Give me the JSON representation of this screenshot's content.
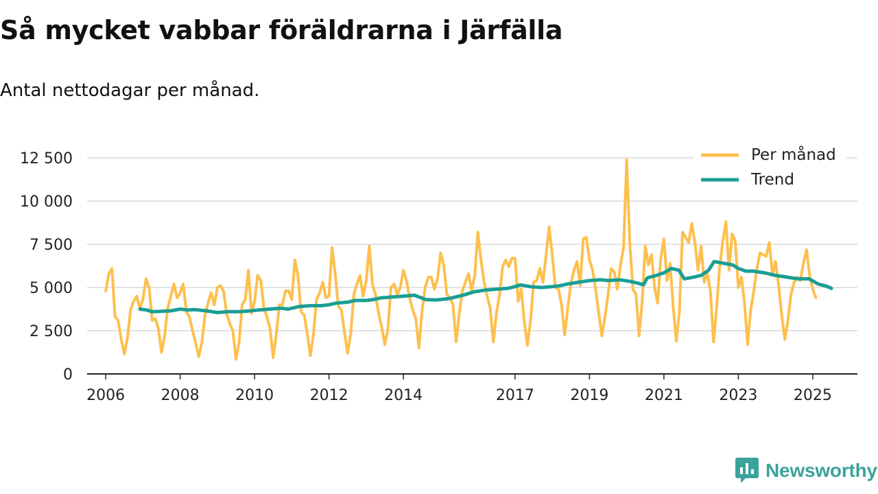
{
  "title": "Så mycket vabbar föräldrarna i Järfälla",
  "subtitle": "Antal nettodagar per månad.",
  "brand": "Newsworthy",
  "colors": {
    "monthly": "#fdc04e",
    "trend": "#1a9e94",
    "grid": "#d9d9d9",
    "axis": "#222222",
    "brand": "#3aa39a"
  },
  "chart_data": {
    "type": "line",
    "title": "Så mycket vabbar föräldrarna i Järfälla",
    "subtitle": "Antal nettodagar per månad.",
    "xlabel": "",
    "ylabel": "",
    "ylim": [
      0,
      12500
    ],
    "yticks": [
      0,
      2500,
      5000,
      7500,
      10000,
      12500
    ],
    "ytick_labels": [
      "0",
      "2 500",
      "5 000",
      "7 500",
      "10 000",
      "12 500"
    ],
    "xlim": [
      2005.5,
      2026.2
    ],
    "xticks": [
      2006,
      2008,
      2010,
      2012,
      2014,
      2017,
      2019,
      2021,
      2023,
      2025
    ],
    "xtick_labels": [
      "2006",
      "2008",
      "2010",
      "2012",
      "2014",
      "2017",
      "2019",
      "2021",
      "2023",
      "2025"
    ],
    "grid": true,
    "legend_position": "top-right",
    "series": [
      {
        "name": "Per månad",
        "color": "#fdc04e",
        "x_start": 2006.0,
        "x_step": 0.08333,
        "values": [
          4800,
          5800,
          6100,
          3300,
          3100,
          2000,
          1150,
          2100,
          3700,
          4200,
          4500,
          3800,
          4300,
          5500,
          5000,
          3100,
          3200,
          2600,
          1250,
          2200,
          3800,
          4500,
          5200,
          4400,
          4700,
          5200,
          3600,
          3300,
          2500,
          1800,
          1000,
          1800,
          3400,
          4100,
          4700,
          4000,
          5000,
          5100,
          4800,
          3500,
          2900,
          2500,
          850,
          1800,
          4000,
          4300,
          6000,
          3500,
          4200,
          5700,
          5400,
          3800,
          3300,
          2600,
          950,
          2300,
          4000,
          4000,
          4800,
          4800,
          4300,
          6600,
          5700,
          3600,
          3400,
          2300,
          1050,
          2300,
          4300,
          4700,
          5300,
          4400,
          4500,
          7300,
          5800,
          3900,
          3700,
          2400,
          1200,
          2300,
          4600,
          5200,
          5700,
          4500,
          5400,
          7400,
          5200,
          4600,
          3500,
          2700,
          1700,
          2600,
          5000,
          5200,
          4600,
          5000,
          6000,
          5400,
          4400,
          3700,
          3200,
          1500,
          3600,
          5000,
          5600,
          5600,
          4900,
          5500,
          7000,
          6300,
          4600,
          4400,
          4000,
          1850,
          3500,
          4800,
          5300,
          5800,
          4800,
          5700,
          8200,
          6600,
          5300,
          4500,
          3800,
          1850,
          3500,
          4600,
          6200,
          6600,
          6200,
          6700,
          6700,
          4200,
          4900,
          3000,
          1650,
          3100,
          5300,
          5400,
          6100,
          5300,
          6900,
          8500,
          6900,
          5000,
          4900,
          4000,
          2250,
          3800,
          5200,
          6000,
          6500,
          5100,
          7800,
          7900,
          6600,
          6000,
          4900,
          3500,
          2200,
          3300,
          4600,
          6100,
          5900,
          4900,
          6300,
          7300,
          12400,
          7600,
          4900,
          4600,
          2200,
          4200,
          7400,
          6300,
          6900,
          5000,
          4100,
          6700,
          7800,
          5400,
          6400,
          3900,
          1900,
          3600,
          8200,
          7900,
          7600,
          8700,
          7600,
          6000,
          7400,
          5300,
          5800,
          4800,
          1850,
          3800,
          6200,
          7700,
          8800,
          6000,
          8100,
          7700,
          5000,
          5600,
          4100,
          1700,
          3700,
          4800,
          6100,
          7000,
          6900,
          6800,
          7600,
          5700,
          6500,
          5100,
          3400,
          2000,
          3100,
          4600,
          5300,
          5600,
          5400,
          6400,
          7200,
          5700,
          4900,
          4400
        ]
      },
      {
        "name": "Trend",
        "color": "#1a9e94",
        "points": [
          [
            2006.92,
            3750
          ],
          [
            2007.1,
            3700
          ],
          [
            2007.25,
            3600
          ],
          [
            2007.5,
            3620
          ],
          [
            2007.75,
            3650
          ],
          [
            2008.0,
            3750
          ],
          [
            2008.2,
            3700
          ],
          [
            2008.4,
            3720
          ],
          [
            2008.7,
            3650
          ],
          [
            2009.0,
            3550
          ],
          [
            2009.3,
            3600
          ],
          [
            2009.6,
            3600
          ],
          [
            2009.9,
            3650
          ],
          [
            2010.1,
            3700
          ],
          [
            2010.4,
            3750
          ],
          [
            2010.7,
            3800
          ],
          [
            2010.9,
            3750
          ],
          [
            2011.2,
            3900
          ],
          [
            2011.5,
            3950
          ],
          [
            2011.8,
            3950
          ],
          [
            2012.0,
            4000
          ],
          [
            2012.2,
            4100
          ],
          [
            2012.5,
            4150
          ],
          [
            2012.7,
            4250
          ],
          [
            2013.0,
            4250
          ],
          [
            2013.2,
            4300
          ],
          [
            2013.4,
            4400
          ],
          [
            2013.7,
            4450
          ],
          [
            2014.0,
            4500
          ],
          [
            2014.3,
            4550
          ],
          [
            2014.6,
            4300
          ],
          [
            2014.9,
            4280
          ],
          [
            2015.2,
            4350
          ],
          [
            2015.6,
            4550
          ],
          [
            2015.9,
            4750
          ],
          [
            2016.2,
            4850
          ],
          [
            2016.5,
            4900
          ],
          [
            2016.8,
            4950
          ],
          [
            2017.0,
            5050
          ],
          [
            2017.15,
            5150
          ],
          [
            2017.4,
            5050
          ],
          [
            2017.7,
            5000
          ],
          [
            2018.0,
            5050
          ],
          [
            2018.2,
            5100
          ],
          [
            2018.4,
            5200
          ],
          [
            2018.7,
            5300
          ],
          [
            2019.0,
            5400
          ],
          [
            2019.3,
            5450
          ],
          [
            2019.5,
            5400
          ],
          [
            2019.8,
            5450
          ],
          [
            2020.1,
            5350
          ],
          [
            2020.3,
            5250
          ],
          [
            2020.45,
            5150
          ],
          [
            2020.55,
            5550
          ],
          [
            2020.8,
            5700
          ],
          [
            2021.0,
            5850
          ],
          [
            2021.2,
            6100
          ],
          [
            2021.4,
            6000
          ],
          [
            2021.55,
            5500
          ],
          [
            2021.8,
            5600
          ],
          [
            2022.0,
            5700
          ],
          [
            2022.2,
            6000
          ],
          [
            2022.35,
            6500
          ],
          [
            2022.6,
            6400
          ],
          [
            2022.85,
            6300
          ],
          [
            2023.0,
            6100
          ],
          [
            2023.2,
            5950
          ],
          [
            2023.4,
            5950
          ],
          [
            2023.7,
            5850
          ],
          [
            2024.0,
            5700
          ],
          [
            2024.3,
            5600
          ],
          [
            2024.6,
            5500
          ],
          [
            2024.9,
            5500
          ],
          [
            2025.15,
            5200
          ],
          [
            2025.4,
            5050
          ],
          [
            2025.5,
            4950
          ]
        ]
      }
    ]
  }
}
